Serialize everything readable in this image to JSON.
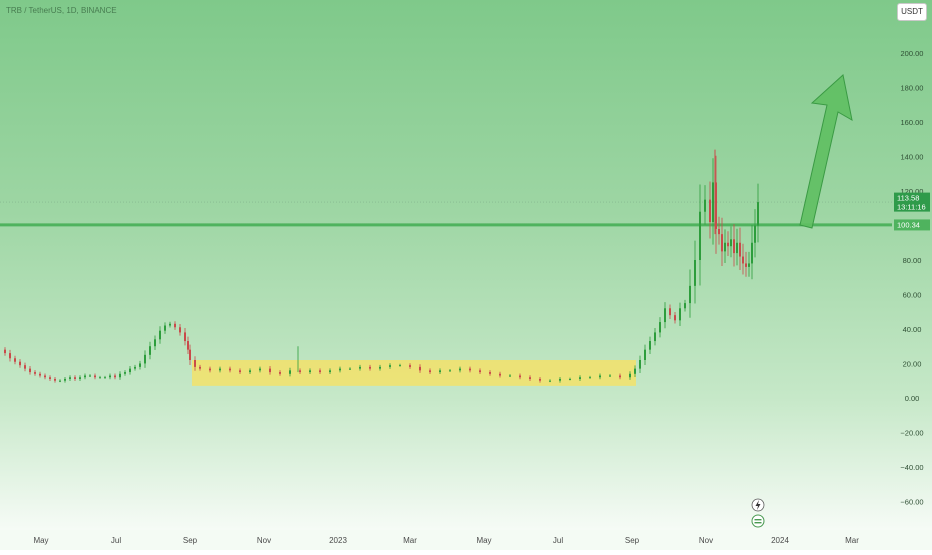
{
  "header": {
    "symbol_line": "TRB / TetherUS, 1D, BINANCE",
    "currency_button": "USDT"
  },
  "colors": {
    "up": "#2d9d3c",
    "down": "#c94a4a",
    "horizontal_line": "#4fb35e",
    "arrow_fill": "#5fbf62",
    "arrow_stroke": "#3a9a44",
    "range_box": "#f3e26a"
  },
  "price_labels": {
    "current_price": "113.58",
    "countdown": "13:11:16",
    "line_level": "100.34"
  },
  "footer_icons": [
    "lightning-icon",
    "dividend-icon"
  ],
  "chart_data": {
    "type": "candlestick",
    "title": "TRB / TetherUS, 1D, BINANCE",
    "xlabel": "",
    "ylabel": "",
    "ylim": [
      -65,
      225
    ],
    "y_ticks": [
      200,
      180,
      160,
      140,
      120,
      100,
      80,
      60,
      40,
      20,
      0,
      -20,
      -40,
      -60
    ],
    "y_tick_labels": [
      "200.00",
      "180.00",
      "160.00",
      "140.00",
      "120.00",
      "100.00",
      "80.00",
      "60.00",
      "40.00",
      "20.00",
      "0.00",
      "−20.00",
      "−40.00",
      "−60.00"
    ],
    "x_tick_labels": [
      "May",
      "Jul",
      "Sep",
      "Nov",
      "2023",
      "Mar",
      "May",
      "Jul",
      "Sep",
      "Nov",
      "2024",
      "Mar"
    ],
    "grid": false,
    "series": [
      {
        "values": [
          [
            0,
            28
          ],
          [
            5,
            26
          ],
          [
            10,
            23
          ],
          [
            15,
            21
          ],
          [
            20,
            19
          ],
          [
            25,
            17
          ],
          [
            30,
            15
          ],
          [
            35,
            14
          ],
          [
            40,
            13
          ],
          [
            45,
            12
          ],
          [
            50,
            11
          ],
          [
            55,
            10
          ],
          [
            60,
            10
          ],
          [
            65,
            11
          ],
          [
            70,
            12
          ],
          [
            75,
            11
          ],
          [
            80,
            12
          ],
          [
            85,
            13
          ],
          [
            90,
            13
          ],
          [
            95,
            12
          ],
          [
            100,
            12
          ],
          [
            105,
            12
          ],
          [
            110,
            13
          ],
          [
            115,
            12
          ],
          [
            120,
            14
          ],
          [
            125,
            15
          ],
          [
            130,
            17
          ],
          [
            135,
            18
          ],
          [
            140,
            20
          ],
          [
            145,
            25
          ],
          [
            150,
            30
          ],
          [
            155,
            34
          ],
          [
            160,
            39
          ],
          [
            165,
            42
          ],
          [
            170,
            43
          ],
          [
            175,
            41
          ],
          [
            180,
            38
          ],
          [
            185,
            33
          ],
          [
            188,
            28
          ],
          [
            190,
            22
          ],
          [
            195,
            18
          ],
          [
            200,
            17
          ],
          [
            210,
            16
          ],
          [
            220,
            17
          ],
          [
            230,
            16
          ],
          [
            240,
            15
          ],
          [
            250,
            16
          ],
          [
            260,
            17
          ],
          [
            270,
            15
          ],
          [
            280,
            14
          ],
          [
            290,
            16
          ],
          [
            300,
            15
          ],
          [
            310,
            16
          ],
          [
            320,
            15
          ],
          [
            330,
            16
          ],
          [
            340,
            17
          ],
          [
            350,
            17
          ],
          [
            360,
            18
          ],
          [
            370,
            17
          ],
          [
            380,
            18
          ],
          [
            390,
            19
          ],
          [
            400,
            19
          ],
          [
            410,
            18
          ],
          [
            420,
            16
          ],
          [
            430,
            15
          ],
          [
            440,
            16
          ],
          [
            450,
            16
          ],
          [
            460,
            17
          ],
          [
            470,
            16
          ],
          [
            480,
            15
          ],
          [
            490,
            14
          ],
          [
            500,
            13
          ],
          [
            510,
            13
          ],
          [
            520,
            12
          ],
          [
            530,
            11
          ],
          [
            540,
            10
          ],
          [
            550,
            10
          ],
          [
            560,
            11
          ],
          [
            570,
            11
          ],
          [
            580,
            12
          ],
          [
            590,
            12
          ],
          [
            600,
            13
          ],
          [
            610,
            13
          ],
          [
            620,
            12
          ],
          [
            630,
            14
          ],
          [
            635,
            17
          ],
          [
            640,
            22
          ],
          [
            645,
            28
          ],
          [
            650,
            33
          ],
          [
            655,
            38
          ],
          [
            660,
            44
          ],
          [
            665,
            52
          ],
          [
            670,
            48
          ],
          [
            675,
            45
          ],
          [
            680,
            52
          ],
          [
            685,
            55
          ],
          [
            690,
            65
          ],
          [
            695,
            80
          ],
          [
            700,
            108
          ],
          [
            705,
            115
          ],
          [
            710,
            102
          ],
          [
            713,
            125
          ],
          [
            716,
            98
          ],
          [
            719,
            95
          ],
          [
            722,
            85
          ],
          [
            725,
            90
          ],
          [
            728,
            88
          ],
          [
            731,
            92
          ],
          [
            734,
            84
          ],
          [
            737,
            90
          ],
          [
            740,
            82
          ],
          [
            743,
            78
          ],
          [
            746,
            76
          ],
          [
            749,
            78
          ],
          [
            752,
            90
          ],
          [
            755,
            100
          ],
          [
            758,
            113.58
          ]
        ]
      }
    ],
    "annotations": {
      "horizontal_line": 100.34,
      "range_box_price": [
        7,
        22
      ],
      "up_arrow": "green arrow pointing up-right"
    }
  }
}
